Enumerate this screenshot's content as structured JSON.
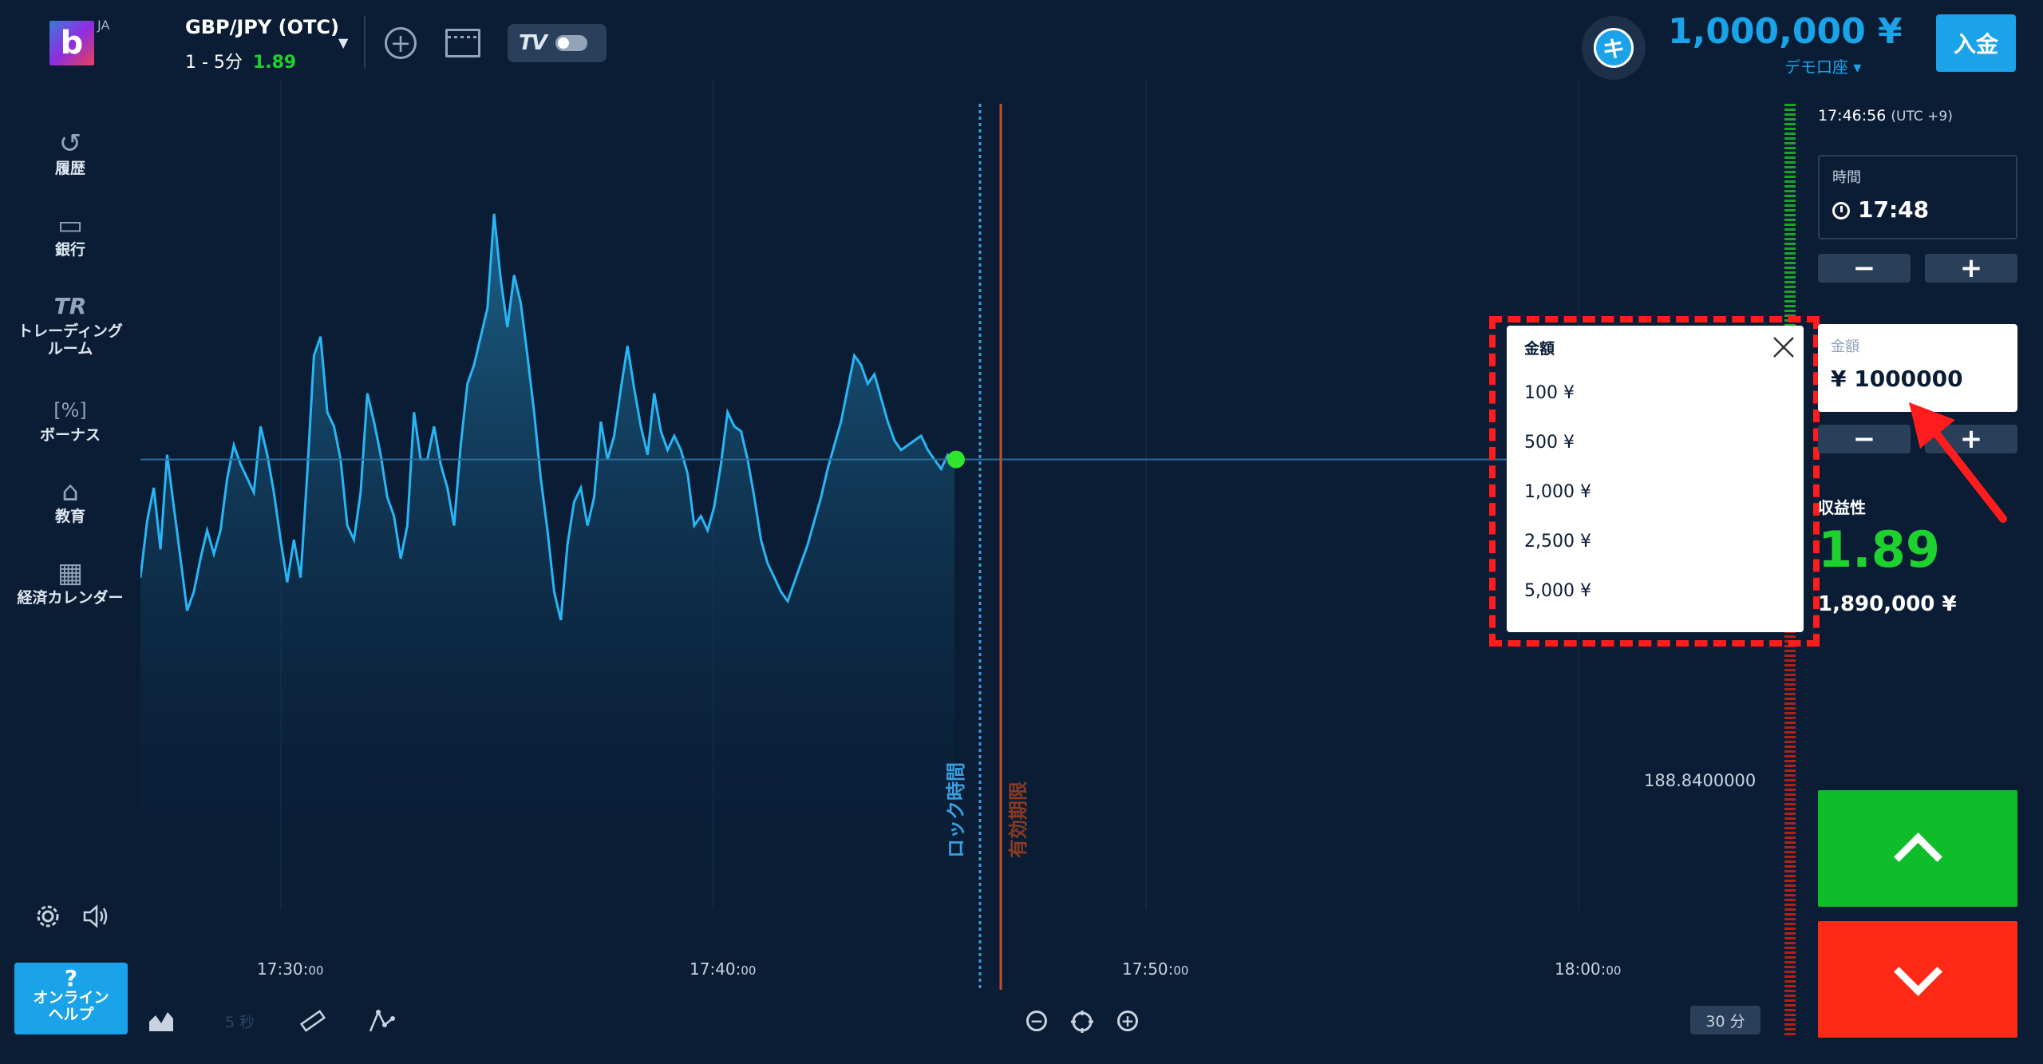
{
  "header": {
    "logo_letter": "b",
    "lang": "JA",
    "pair": "GBP/JPY (OTC)",
    "pair_timeframe": "1 - 5分",
    "pair_payout": "1.89",
    "avatar_letter": "キ",
    "balance": "1,000,000 ¥",
    "account_type": "デモ口座 ▾",
    "deposit_label": "入金"
  },
  "sidebar": {
    "items": [
      {
        "label": "履歴",
        "icon": "history-icon"
      },
      {
        "label": "銀行",
        "icon": "wallet-icon"
      },
      {
        "label": "トレーディング\nルーム",
        "icon": "trading-room-icon"
      },
      {
        "label": "ボーナス",
        "icon": "bonus-icon"
      },
      {
        "label": "教育",
        "icon": "education-icon"
      },
      {
        "label": "経済カレンダー",
        "icon": "calendar-icon"
      }
    ],
    "help_q": "?",
    "help_label_1": "オンライン",
    "help_label_2": "ヘルプ"
  },
  "chart": {
    "x_ticks": [
      {
        "main": "17:30:",
        "small": "00"
      },
      {
        "main": "17:40:",
        "small": "00"
      },
      {
        "main": "17:50:",
        "small": "00"
      },
      {
        "main": "18:00:",
        "small": "00"
      }
    ],
    "current_price": "188.8400000",
    "lock_label": "ロック時間",
    "expiry_label": "有効期限",
    "tf_small": "5 秒",
    "tf_button": "30 分",
    "colors": {
      "line": "#29b6f6",
      "lock": "#3a9fe0",
      "expiry": "#c0522a",
      "point": "#2ee62e"
    }
  },
  "chart_data": {
    "type": "area",
    "series": [
      {
        "values": [
          0.45,
          0.57,
          0.64,
          0.51,
          0.71,
          0.6,
          0.49,
          0.38,
          0.42,
          0.49,
          0.55,
          0.5,
          0.55,
          0.66,
          0.73,
          0.69,
          0.66,
          0.63,
          0.77,
          0.71,
          0.63,
          0.53,
          0.44,
          0.53,
          0.45,
          0.67,
          0.92,
          0.96,
          0.8,
          0.77,
          0.7,
          0.56,
          0.53,
          0.63,
          0.84,
          0.78,
          0.71,
          0.62,
          0.58,
          0.49,
          0.56,
          0.8,
          0.7,
          0.7,
          0.77,
          0.69,
          0.64,
          0.56,
          0.73,
          0.86,
          0.9,
          0.96,
          1.02,
          1.22,
          1.08,
          0.98,
          1.09,
          1.03,
          0.92,
          0.8,
          0.66,
          0.55,
          0.42,
          0.36,
          0.52,
          0.61,
          0.64,
          0.56,
          0.62,
          0.78,
          0.7,
          0.75,
          0.85,
          0.94,
          0.85,
          0.77,
          0.71,
          0.84,
          0.76,
          0.72,
          0.75,
          0.72,
          0.67,
          0.56,
          0.58,
          0.55,
          0.6,
          0.69,
          0.8,
          0.77,
          0.76,
          0.7,
          0.62,
          0.53,
          0.48,
          0.45,
          0.42,
          0.4,
          0.44,
          0.48,
          0.52,
          0.57,
          0.62,
          0.68,
          0.73,
          0.78,
          0.85,
          0.92,
          0.9,
          0.86,
          0.88,
          0.83,
          0.78,
          0.74,
          0.72,
          0.73,
          0.74,
          0.75,
          0.72,
          0.7,
          0.68,
          0.71,
          0.7
        ]
      }
    ],
    "xlabel": "",
    "ylabel": ""
  },
  "dropdown": {
    "title": "金額",
    "options": [
      "100 ¥",
      "500 ¥",
      "1,000 ¥",
      "2,500 ¥",
      "5,000 ¥"
    ]
  },
  "panel": {
    "time_now": "17:46:56",
    "tz": "(UTC +9)",
    "time_caption": "時間",
    "time_value": "17:48",
    "minus": "−",
    "plus": "+",
    "amount_caption": "金額",
    "amount_value": "¥ 1000000",
    "profit_label": "収益性",
    "profit_pct": "1.89",
    "profit_amount": "1,890,000 ¥"
  }
}
